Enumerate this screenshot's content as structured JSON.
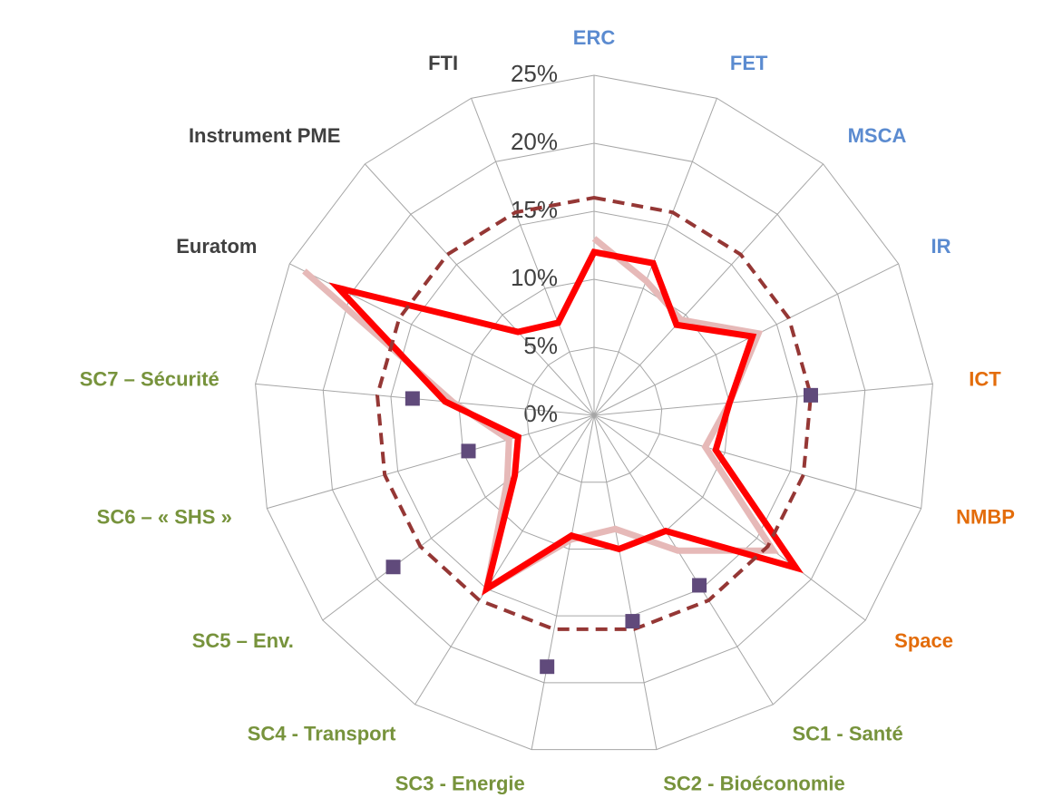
{
  "chart_data": {
    "type": "radar",
    "categories": [
      "ERC",
      "FET",
      "MSCA",
      "IR",
      "ICT",
      "NMBP",
      "Space",
      "SC1 - Santé",
      "SC2 - Bioéconomie",
      "SC3 - Energie",
      "SC4 - Transport",
      "SC5 – Env.",
      "SC6 –  « SHS »",
      "SC7 –  Sécurité",
      "Euratom",
      "Instrument PME",
      "FTI"
    ],
    "category_colors": [
      "#5b8bd0",
      "#5b8bd0",
      "#5b8bd0",
      "#5b8bd0",
      "#e36c0a",
      "#e36c0a",
      "#e36c0a",
      "#77933c",
      "#77933c",
      "#77933c",
      "#77933c",
      "#77933c",
      "#77933c",
      "#77933c",
      "#404040",
      "#404040",
      "#404040"
    ],
    "ylim": [
      0,
      25
    ],
    "yticks": [
      {
        "value": 0,
        "label": "0%"
      },
      {
        "value": 5,
        "label": "5%"
      },
      {
        "value": 10,
        "label": "10%"
      },
      {
        "value": 15,
        "label": "15%"
      },
      {
        "value": 20,
        "label": "20%"
      },
      {
        "value": 25,
        "label": "25%"
      }
    ],
    "grid": true,
    "series": [
      {
        "color": "#e6b9b8",
        "style": "line",
        "values": [
          13,
          10.6,
          9.5,
          13.5,
          10,
          8.5,
          16.5,
          11.7,
          8.5,
          9.3,
          15,
          8,
          6.5,
          10.4,
          23.8,
          null,
          null
        ]
      },
      {
        "color": "#ff0000",
        "style": "line",
        "values": [
          12,
          12,
          9,
          13,
          10,
          9.3,
          18.6,
          10,
          10,
          9,
          15,
          7.3,
          5.8,
          11,
          21,
          8.3,
          7.3
        ]
      },
      {
        "color": "#953735",
        "style": "dashed",
        "values": [
          16,
          16,
          16,
          16,
          16,
          16,
          16,
          16,
          16,
          16,
          16,
          16,
          16,
          16,
          16,
          16,
          16
        ]
      },
      {
        "color": "#604a7b",
        "style": "markers",
        "values": [
          null,
          null,
          null,
          null,
          16,
          null,
          null,
          14.7,
          15.4,
          18.8,
          null,
          18.5,
          9.6,
          13.4,
          null,
          null,
          null
        ]
      }
    ]
  }
}
